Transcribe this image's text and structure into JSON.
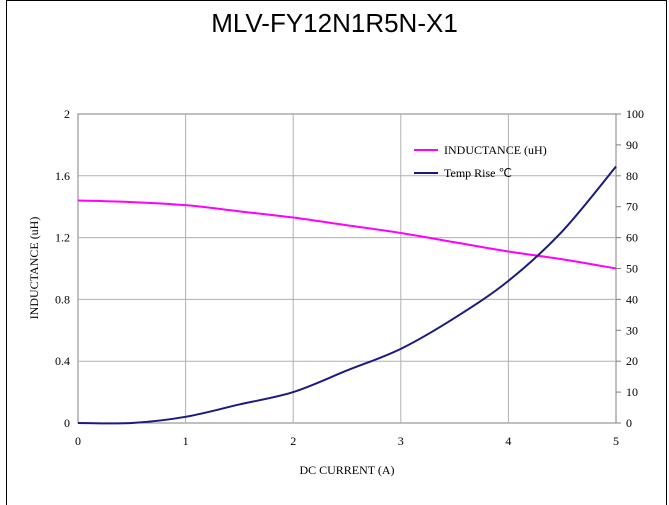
{
  "chart_data": {
    "type": "line",
    "title": "MLV-FY12N1R5N-X1",
    "xlabel": "DC CURRENT  (A)",
    "ylabel": "INDUCTANCE (uH)",
    "xlim": [
      0,
      5
    ],
    "ylim": [
      0,
      2
    ],
    "y2lim": [
      0,
      100
    ],
    "x_ticks": [
      "0",
      "1",
      "2",
      "3",
      "4",
      "5"
    ],
    "y_ticks": [
      "0",
      "0.4",
      "0.8",
      "1.2",
      "1.6",
      "2"
    ],
    "y2_ticks": [
      "0",
      "10",
      "20",
      "30",
      "40",
      "50",
      "60",
      "70",
      "80",
      "90",
      "100"
    ],
    "grid": true,
    "legend_position": "top-right",
    "series": [
      {
        "name": "INDUCTANCE (uH)",
        "axis": "left",
        "color": "#ff00ff",
        "x": [
          0,
          0.5,
          1,
          1.5,
          2,
          2.5,
          3,
          3.5,
          4,
          4.5,
          5
        ],
        "values": [
          1.44,
          1.43,
          1.41,
          1.37,
          1.33,
          1.28,
          1.23,
          1.17,
          1.11,
          1.06,
          1.0
        ]
      },
      {
        "name": "Temp Rise ℃",
        "axis": "right",
        "color": "#1a1a80",
        "x": [
          0,
          0.5,
          1,
          1.5,
          2,
          2.5,
          3,
          3.5,
          4,
          4.5,
          5
        ],
        "values": [
          0,
          0,
          2,
          6,
          10,
          17,
          24,
          34,
          46,
          62,
          83
        ]
      }
    ]
  }
}
